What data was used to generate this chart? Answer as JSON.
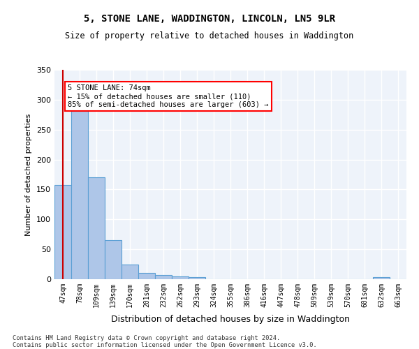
{
  "title": "5, STONE LANE, WADDINGTON, LINCOLN, LN5 9LR",
  "subtitle": "Size of property relative to detached houses in Waddington",
  "xlabel": "Distribution of detached houses by size in Waddington",
  "ylabel": "Number of detached properties",
  "bar_color": "#aec6e8",
  "bar_edge_color": "#5a9fd4",
  "background_color": "#eef3fa",
  "grid_color": "#ffffff",
  "categories": [
    "47sqm",
    "78sqm",
    "109sqm",
    "139sqm",
    "170sqm",
    "201sqm",
    "232sqm",
    "262sqm",
    "293sqm",
    "324sqm",
    "355sqm",
    "386sqm",
    "416sqm",
    "447sqm",
    "478sqm",
    "509sqm",
    "539sqm",
    "570sqm",
    "601sqm",
    "632sqm",
    "663sqm"
  ],
  "values": [
    157,
    285,
    170,
    65,
    25,
    10,
    7,
    5,
    4,
    0,
    0,
    0,
    0,
    0,
    0,
    0,
    0,
    0,
    0,
    4,
    0
  ],
  "property_line_x": 0,
  "annotation_text": "5 STONE LANE: 74sqm\n← 15% of detached houses are smaller (110)\n85% of semi-detached houses are larger (603) →",
  "annotation_box_color": "white",
  "annotation_box_edge": "red",
  "red_line_color": "#cc0000",
  "footer_text": "Contains HM Land Registry data © Crown copyright and database right 2024.\nContains public sector information licensed under the Open Government Licence v3.0.",
  "ylim": [
    0,
    350
  ],
  "yticks": [
    0,
    50,
    100,
    150,
    200,
    250,
    300,
    350
  ]
}
